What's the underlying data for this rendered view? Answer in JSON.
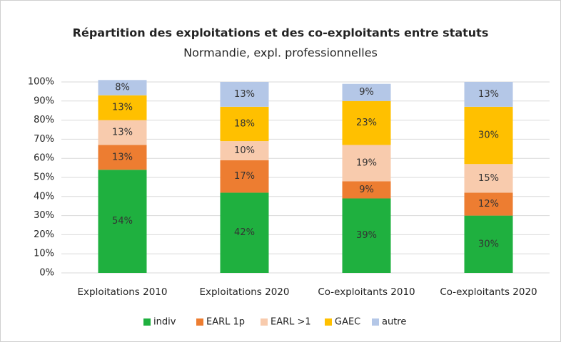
{
  "chart_data": {
    "type": "stacked_bar",
    "title": "Répartition des exploitations et des co-exploitants entre statuts",
    "subtitle": "Normandie, expl. professionnelles",
    "categories": [
      "Exploitations 2010",
      "Exploitations 2020",
      "Co-exploitants 2010",
      "Co-exploitants 2020"
    ],
    "series": [
      {
        "name": "indiv",
        "color": "#1fb03f",
        "values": [
          54,
          42,
          39,
          30
        ],
        "value_labels": [
          "54%",
          "42%",
          "39%",
          "30%"
        ]
      },
      {
        "name": "EARL 1p",
        "color": "#ed7d31",
        "values": [
          13,
          17,
          9,
          12
        ],
        "value_labels": [
          "13%",
          "17%",
          "9%",
          "12%"
        ]
      },
      {
        "name": "EARL >1",
        "color": "#f8cbad",
        "values": [
          13,
          10,
          19,
          15
        ],
        "value_labels": [
          "13%",
          "10%",
          "19%",
          "15%"
        ]
      },
      {
        "name": "GAEC",
        "color": "#ffc000",
        "values": [
          13,
          18,
          23,
          30
        ],
        "value_labels": [
          "13%",
          "18%",
          "23%",
          "30%"
        ]
      },
      {
        "name": "autre",
        "color": "#b4c7e7",
        "values": [
          8,
          13,
          9,
          13
        ],
        "value_labels": [
          "8%",
          "13%",
          "9%",
          "13%"
        ]
      }
    ],
    "ylim": [
      0,
      100
    ],
    "yticks": [
      {
        "value": 0,
        "label": "0%"
      },
      {
        "value": 10,
        "label": "10%"
      },
      {
        "value": 20,
        "label": "20%"
      },
      {
        "value": 30,
        "label": "30%"
      },
      {
        "value": 40,
        "label": "40%"
      },
      {
        "value": 50,
        "label": "50%"
      },
      {
        "value": 60,
        "label": "60%"
      },
      {
        "value": 70,
        "label": "70%"
      },
      {
        "value": 80,
        "label": "80%"
      },
      {
        "value": 90,
        "label": "90%"
      },
      {
        "value": 100,
        "label": "100%"
      }
    ],
    "grid": true
  }
}
